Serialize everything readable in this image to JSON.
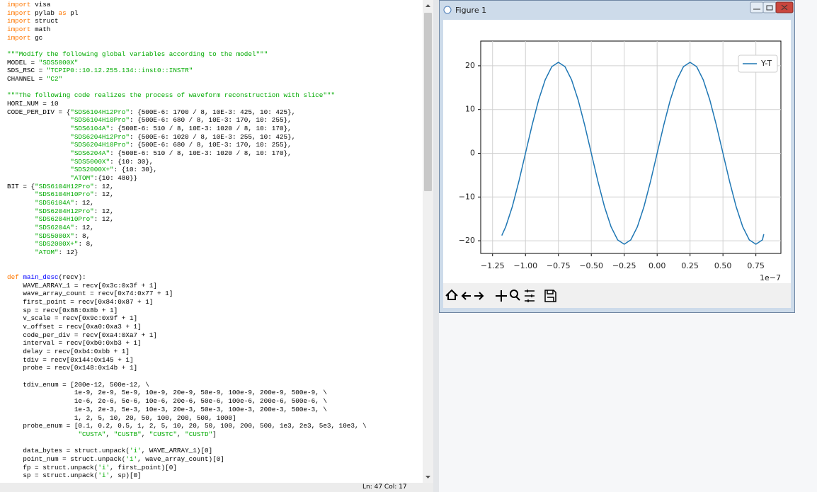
{
  "editor": {
    "blocks": [
      [
        "import visa",
        "import pylab as pl",
        "import struct",
        "import math",
        "import gc"
      ],
      [
        "\"\"\"Modify the following global variables according to the model\"\"\"",
        "MODEL = \"SDS5000X\"",
        "SDS_RSC = \"TCPIP0::10.12.255.134::inst0::INSTR\"",
        "CHANNEL = \"C2\""
      ],
      [
        "\"\"\"The following code realizes the process of waveform reconstruction with slice\"\"\"",
        "HORI_NUM = 10",
        "CODE_PER_DIV = {\"SDS6104H12Pro\": {500E-6: 1700 / 8, 10E-3: 425, 10: 425},",
        "                \"SDS6104H10Pro\": {500E-6: 680 / 8, 10E-3: 170, 10: 255},",
        "                \"SDS6104A\": {500E-6: 510 / 8, 10E-3: 1020 / 8, 10: 170},",
        "                \"SDS6204H12Pro\": {500E-6: 1020 / 8, 10E-3: 255, 10: 425},",
        "                \"SDS6204H10Pro\": {500E-6: 680 / 8, 10E-3: 170, 10: 255},",
        "                \"SDS6204A\": {500E-6: 510 / 8, 10E-3: 1020 / 8, 10: 170},",
        "                \"SDS5000X\": {10: 30},",
        "                \"SDS2000X+\": {10: 30},",
        "                \"ATOM\":{10: 480}}",
        "BIT = {\"SDS6104H12Pro\": 12,",
        "       \"SDS6104H10Pro\": 12,",
        "       \"SDS6104A\": 12,",
        "       \"SDS6204H12Pro\": 12,",
        "       \"SDS6204H10Pro\": 12,",
        "       \"SDS6204A\": 12,",
        "       \"SDS5000X\": 8,",
        "       \"SDS2000X+\": 8,",
        "       \"ATOM\": 12}"
      ],
      [
        "def main_desc(recv):",
        "    WAVE_ARRAY_1 = recv[0x3c:0x3f + 1]",
        "    wave_array_count = recv[0x74:0x77 + 1]",
        "    first_point = recv[0x84:0x87 + 1]",
        "    sp = recv[0x88:0x8b + 1]",
        "    v_scale = recv[0x9c:0x9f + 1]",
        "    v_offset = recv[0xa0:0xa3 + 1]",
        "    code_per_div = recv[0xa4:0Xa7 + 1]",
        "    interval = recv[0xb0:0xb3 + 1]",
        "    delay = recv[0xb4:0xbb + 1]",
        "    tdiv = recv[0x144:0x145 + 1]",
        "    probe = recv[0x148:0x14b + 1]"
      ],
      [
        "    tdiv_enum = [200e-12, 500e-12, \\",
        "                 1e-9, 2e-9, 5e-9, 10e-9, 20e-9, 50e-9, 100e-9, 200e-9, 500e-9, \\",
        "                 1e-6, 2e-6, 5e-6, 10e-6, 20e-6, 50e-6, 100e-6, 200e-6, 500e-6, \\",
        "                 1e-3, 2e-3, 5e-3, 10e-3, 20e-3, 50e-3, 100e-3, 200e-3, 500e-3, \\",
        "                 1, 2, 5, 10, 20, 50, 100, 200, 500, 1000]",
        "    probe_enum = [0.1, 0.2, 0.5, 1, 2, 5, 10, 20, 50, 100, 200, 500, 1e3, 2e3, 5e3, 10e3, \\",
        "                  \"CUSTA\", \"CUSTB\", \"CUSTC\", \"CUSTD\"]"
      ],
      [
        "    data_bytes = struct.unpack('i', WAVE_ARRAY_1)[0]",
        "    point_num = struct.unpack('i', wave_array_count)[0]",
        "    fp = struct.unpack('i', first_point)[0]",
        "    sp = struct.unpack('i', sp)[0]"
      ]
    ],
    "status": "Ln: 47  Col: 17"
  },
  "window": {
    "title": "Figure 1"
  },
  "chart_data": {
    "type": "line",
    "x": [
      -1.18,
      -1.15,
      -1.1,
      -1.05,
      -1.0,
      -0.95,
      -0.9,
      -0.85,
      -0.8,
      -0.75,
      -0.7,
      -0.65,
      -0.6,
      -0.55,
      -0.5,
      -0.45,
      -0.4,
      -0.35,
      -0.3,
      -0.25,
      -0.2,
      -0.15,
      -0.1,
      -0.05,
      0.0,
      0.05,
      0.1,
      0.15,
      0.2,
      0.25,
      0.3,
      0.35,
      0.4,
      0.45,
      0.5,
      0.55,
      0.6,
      0.65,
      0.7,
      0.75,
      0.8,
      0.81
    ],
    "series": [
      {
        "name": "Y-T",
        "color": "#1f77b4",
        "values": [
          -18.8,
          -16.8,
          -12.2,
          -6.4,
          0,
          6.4,
          12.2,
          16.8,
          19.8,
          20.8,
          19.8,
          16.8,
          12.2,
          6.4,
          0,
          -6.4,
          -12.2,
          -16.8,
          -19.8,
          -20.8,
          -19.8,
          -16.8,
          -12.2,
          -6.4,
          0,
          6.4,
          12.2,
          16.8,
          19.8,
          20.8,
          19.8,
          16.8,
          12.2,
          6.4,
          0,
          -6.4,
          -12.2,
          -16.8,
          -19.8,
          -20.8,
          -19.8,
          -18.5
        ]
      }
    ],
    "xlim": [
      -1.34,
      0.94
    ],
    "xticks": [
      {
        "value": -1.25,
        "label": "−1.25"
      },
      {
        "value": -1.0,
        "label": "−1.00"
      },
      {
        "value": -0.75,
        "label": "−0.75"
      },
      {
        "value": -0.5,
        "label": "−0.50"
      },
      {
        "value": -0.25,
        "label": "−0.25"
      },
      {
        "value": 0,
        "label": "0.00"
      },
      0.25,
      {
        "value": 0.5,
        "label": "0.50"
      },
      0.75
    ],
    "x_offset_text": "1e−7",
    "ylim": [
      -22.9,
      22.9
    ],
    "yticks": [
      {
        "value": -20,
        "label": "−20"
      },
      {
        "value": -10,
        "label": "−10"
      },
      0,
      10,
      20
    ],
    "grid": true,
    "legend": "upper right"
  }
}
